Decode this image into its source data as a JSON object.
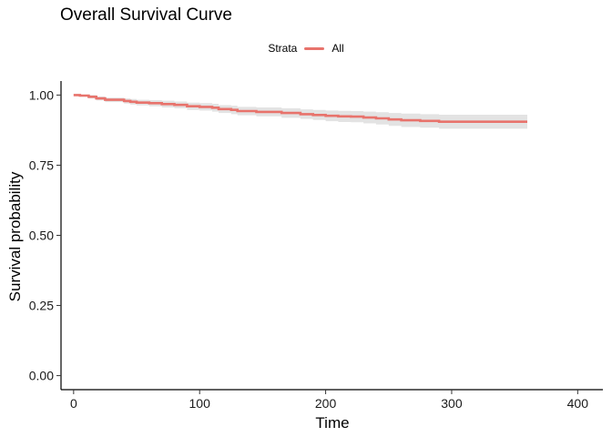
{
  "chart_data": {
    "type": "line",
    "title": "Overall Survival Curve",
    "xlabel": "Time",
    "ylabel": "Survival probability",
    "xlim": [
      -10,
      420
    ],
    "ylim": [
      -0.05,
      1.05
    ],
    "xticks": [
      0,
      100,
      200,
      300,
      400
    ],
    "yticks": [
      0.0,
      0.25,
      0.5,
      0.75,
      1.0
    ],
    "ytick_labels": [
      "0.00",
      "0.25",
      "0.50",
      "0.75",
      "1.00"
    ],
    "grid": false,
    "legend": {
      "position": "top",
      "title": "Strata",
      "entries": [
        "All"
      ]
    },
    "colors": {
      "line": "#e8736c",
      "band": "#d9d9d9"
    },
    "series": [
      {
        "name": "All",
        "x": [
          0,
          5,
          12,
          18,
          25,
          40,
          45,
          50,
          60,
          70,
          80,
          90,
          100,
          110,
          115,
          125,
          130,
          145,
          165,
          180,
          190,
          200,
          210,
          220,
          230,
          240,
          250,
          260,
          275,
          290,
          300,
          330,
          360
        ],
        "y": [
          1.0,
          0.998,
          0.994,
          0.988,
          0.983,
          0.979,
          0.976,
          0.973,
          0.971,
          0.968,
          0.965,
          0.96,
          0.958,
          0.955,
          0.95,
          0.947,
          0.943,
          0.94,
          0.936,
          0.932,
          0.929,
          0.926,
          0.924,
          0.923,
          0.92,
          0.917,
          0.913,
          0.91,
          0.908,
          0.905,
          0.905,
          0.905,
          0.905
        ],
        "lower": [
          1.0,
          0.994,
          0.988,
          0.981,
          0.975,
          0.97,
          0.966,
          0.963,
          0.96,
          0.956,
          0.953,
          0.947,
          0.945,
          0.941,
          0.936,
          0.932,
          0.928,
          0.924,
          0.919,
          0.915,
          0.911,
          0.907,
          0.904,
          0.903,
          0.899,
          0.895,
          0.89,
          0.886,
          0.884,
          0.88,
          0.88,
          0.88,
          0.88
        ],
        "upper": [
          1.0,
          1.0,
          1.0,
          0.995,
          0.991,
          0.988,
          0.986,
          0.983,
          0.982,
          0.98,
          0.977,
          0.973,
          0.971,
          0.969,
          0.964,
          0.962,
          0.958,
          0.956,
          0.953,
          0.949,
          0.947,
          0.945,
          0.944,
          0.943,
          0.941,
          0.939,
          0.936,
          0.934,
          0.932,
          0.93,
          0.93,
          0.93,
          0.93
        ]
      }
    ]
  }
}
